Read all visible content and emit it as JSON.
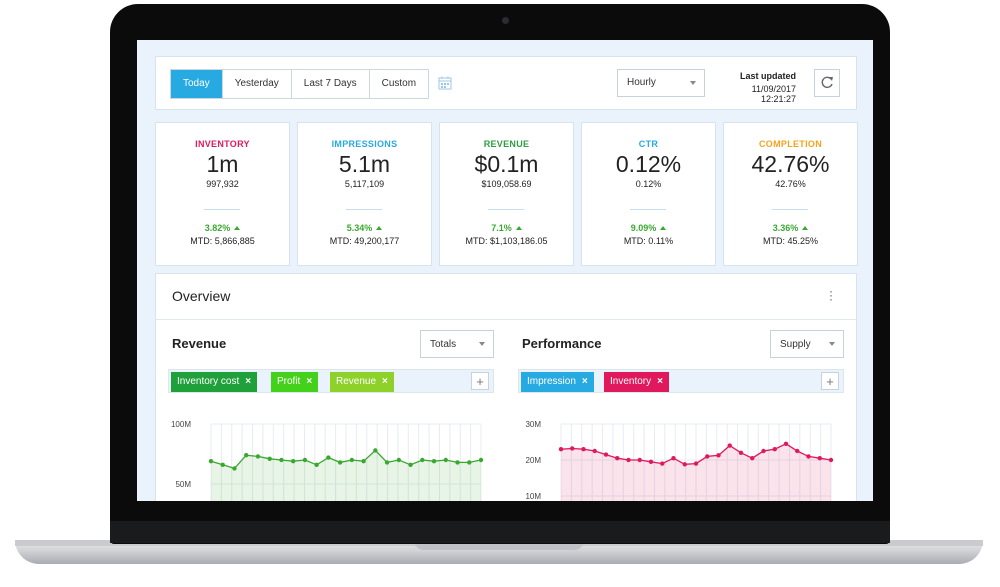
{
  "toolbar": {
    "ranges": [
      "Today",
      "Yesterday",
      "Last 7 Days",
      "Custom"
    ],
    "active_range": "Today",
    "interval": "Hourly",
    "last_updated_label": "Last updated",
    "last_updated_value": "11/09/2017 12:21:27"
  },
  "kpis": [
    {
      "title": "INVENTORY",
      "color": "#e0195d",
      "big": "1m",
      "small": "997,932",
      "pct": "3.82%",
      "mtd": "MTD: 5,866,885"
    },
    {
      "title": "IMPRESSIONS",
      "color": "#27aae1",
      "big": "5.1m",
      "small": "5,117,109",
      "pct": "5.34%",
      "mtd": "MTD: 49,200,177"
    },
    {
      "title": "REVENUE",
      "color": "#2e9e3f",
      "big": "$0.1m",
      "small": "$109,058.69",
      "pct": "7.1%",
      "mtd": "MTD: $1,103,186.05"
    },
    {
      "title": "CTR",
      "color": "#27aae1",
      "big": "0.12%",
      "small": "0.12%",
      "pct": "9.09%",
      "mtd": "MTD: 0.11%"
    },
    {
      "title": "COMPLETION",
      "color": "#f5a31a",
      "big": "42.76%",
      "small": "42.76%",
      "pct": "3.36%",
      "mtd": "MTD: 45.25%"
    }
  ],
  "overview": {
    "title": "Overview",
    "revenue_panel": {
      "title": "Revenue",
      "select": "Totals",
      "tags": [
        {
          "label": "Inventory cost",
          "color": "#1fa03a"
        },
        {
          "label": "Profit",
          "color": "#44d11c"
        },
        {
          "label": "Revenue",
          "color": "#8ed12a"
        }
      ]
    },
    "performance_panel": {
      "title": "Performance",
      "select": "Supply",
      "tags": [
        {
          "label": "Impression",
          "color": "#27aae1"
        },
        {
          "label": "Inventory",
          "color": "#e0195d"
        }
      ]
    }
  },
  "chart_data": [
    {
      "type": "area",
      "yticks": [
        "100M",
        "50M"
      ],
      "ytick_values": [
        100,
        50
      ],
      "ylim": [
        25,
        100
      ],
      "series": [
        {
          "color": "#3aa830",
          "values": [
            69,
            66,
            63,
            74,
            73,
            71,
            70,
            69,
            70,
            66,
            72,
            68,
            70,
            69,
            78,
            68,
            70,
            66,
            70,
            69,
            70,
            68,
            68,
            70
          ]
        }
      ],
      "grid": true
    },
    {
      "type": "area",
      "yticks": [
        "30M",
        "20M",
        "10M"
      ],
      "ytick_values": [
        30,
        20,
        10
      ],
      "ylim": [
        5,
        30
      ],
      "series": [
        {
          "color": "#e0195d",
          "values": [
            23.0,
            23.2,
            23.0,
            22.5,
            21.5,
            20.5,
            20.0,
            20.0,
            19.5,
            19.0,
            20.5,
            18.8,
            19.0,
            21.0,
            21.3,
            24.0,
            22.0,
            20.5,
            22.5,
            23.0,
            24.5,
            22.5,
            21.0,
            20.5,
            20.0
          ]
        }
      ],
      "grid": true
    }
  ]
}
